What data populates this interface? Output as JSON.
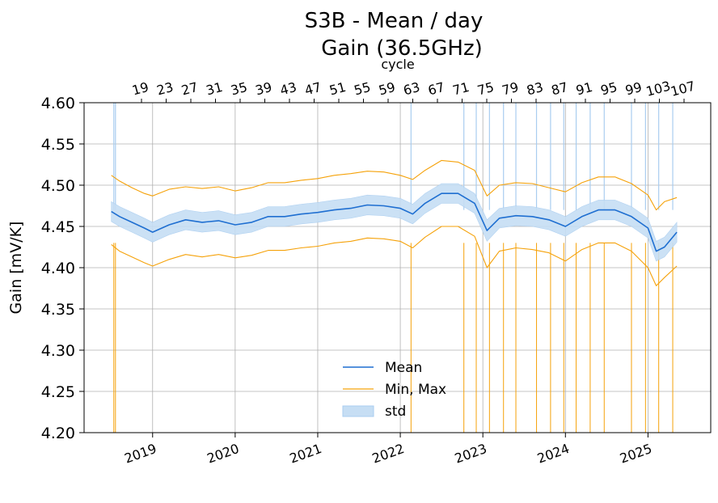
{
  "chart_data": {
    "type": "line",
    "title_line1": "S3B - Mean / day",
    "title_line2": "Gain (36.5GHz)",
    "ylabel": "Gain [mV/K]",
    "top_axis_label": "cycle",
    "ylim": [
      4.2,
      4.6
    ],
    "y_ticks": [
      "4.20",
      "4.25",
      "4.30",
      "4.35",
      "4.40",
      "4.45",
      "4.50",
      "4.55",
      "4.60"
    ],
    "xlim": [
      2018.17,
      2025.76
    ],
    "x_ticks": [
      "2019",
      "2020",
      "2021",
      "2022",
      "2023",
      "2024",
      "2025"
    ],
    "cycle_ticks": [
      "19",
      "23",
      "27",
      "31",
      "35",
      "39",
      "43",
      "47",
      "51",
      "55",
      "59",
      "63",
      "67",
      "71",
      "75",
      "79",
      "83",
      "87",
      "91",
      "95",
      "99",
      "103",
      "107"
    ],
    "legend": {
      "placement": "lower-center",
      "mean_label": "Mean",
      "minmax_label": "Min, Max",
      "std_label": "std"
    },
    "colors": {
      "mean": "#1f6fd1",
      "minmax": "#f5a20a",
      "std": "#a9cdf0",
      "grid": "#b0b0b0"
    },
    "series": [
      {
        "name": "Mean",
        "x": [
          2018.5,
          2018.6,
          2018.75,
          2018.9,
          2019.0,
          2019.2,
          2019.4,
          2019.6,
          2019.8,
          2020.0,
          2020.2,
          2020.4,
          2020.6,
          2020.8,
          2021.0,
          2021.2,
          2021.4,
          2021.6,
          2021.8,
          2022.0,
          2022.15,
          2022.3,
          2022.5,
          2022.7,
          2022.9,
          2023.05,
          2023.2,
          2023.4,
          2023.6,
          2023.8,
          2024.0,
          2024.2,
          2024.4,
          2024.6,
          2024.8,
          2025.0,
          2025.1,
          2025.2,
          2025.35
        ],
        "values": [
          4.468,
          4.462,
          4.455,
          4.448,
          4.443,
          4.452,
          4.458,
          4.455,
          4.457,
          4.452,
          4.455,
          4.462,
          4.462,
          4.465,
          4.467,
          4.47,
          4.472,
          4.476,
          4.475,
          4.472,
          4.465,
          4.478,
          4.49,
          4.49,
          4.478,
          4.445,
          4.46,
          4.463,
          4.462,
          4.458,
          4.45,
          4.462,
          4.47,
          4.47,
          4.462,
          4.448,
          4.42,
          4.425,
          4.443
        ]
      },
      {
        "name": "Max",
        "x": [
          2018.5,
          2018.6,
          2018.75,
          2018.9,
          2019.0,
          2019.2,
          2019.4,
          2019.6,
          2019.8,
          2020.0,
          2020.2,
          2020.4,
          2020.6,
          2020.8,
          2021.0,
          2021.2,
          2021.4,
          2021.6,
          2021.8,
          2022.0,
          2022.15,
          2022.3,
          2022.5,
          2022.7,
          2022.9,
          2023.05,
          2023.2,
          2023.4,
          2023.6,
          2023.8,
          2024.0,
          2024.2,
          2024.4,
          2024.6,
          2024.8,
          2025.0,
          2025.1,
          2025.2,
          2025.35
        ],
        "values": [
          4.512,
          4.505,
          4.497,
          4.49,
          4.487,
          4.495,
          4.498,
          4.496,
          4.498,
          4.493,
          4.497,
          4.503,
          4.503,
          4.506,
          4.508,
          4.512,
          4.514,
          4.517,
          4.516,
          4.512,
          4.507,
          4.518,
          4.53,
          4.528,
          4.518,
          4.487,
          4.5,
          4.503,
          4.502,
          4.497,
          4.492,
          4.503,
          4.51,
          4.51,
          4.502,
          4.488,
          4.47,
          4.48,
          4.485
        ]
      },
      {
        "name": "Min",
        "x": [
          2018.5,
          2018.6,
          2018.75,
          2018.9,
          2019.0,
          2019.2,
          2019.4,
          2019.6,
          2019.8,
          2020.0,
          2020.2,
          2020.4,
          2020.6,
          2020.8,
          2021.0,
          2021.2,
          2021.4,
          2021.6,
          2021.8,
          2022.0,
          2022.15,
          2022.3,
          2022.5,
          2022.7,
          2022.9,
          2023.05,
          2023.2,
          2023.4,
          2023.6,
          2023.8,
          2024.0,
          2024.2,
          2024.4,
          2024.6,
          2024.8,
          2025.0,
          2025.1,
          2025.2,
          2025.35
        ],
        "values": [
          4.428,
          4.42,
          4.413,
          4.406,
          4.402,
          4.41,
          4.416,
          4.413,
          4.416,
          4.412,
          4.415,
          4.421,
          4.421,
          4.424,
          4.426,
          4.43,
          4.432,
          4.436,
          4.435,
          4.432,
          4.424,
          4.437,
          4.45,
          4.45,
          4.438,
          4.4,
          4.42,
          4.424,
          4.422,
          4.418,
          4.408,
          4.422,
          4.43,
          4.43,
          4.42,
          4.4,
          4.378,
          4.388,
          4.402
        ]
      }
    ],
    "std_band": {
      "x": [
        2018.5,
        2018.6,
        2018.75,
        2018.9,
        2019.0,
        2019.2,
        2019.4,
        2019.6,
        2019.8,
        2020.0,
        2020.2,
        2020.4,
        2020.6,
        2020.8,
        2021.0,
        2021.2,
        2021.4,
        2021.6,
        2021.8,
        2022.0,
        2022.15,
        2022.3,
        2022.5,
        2022.7,
        2022.9,
        2023.05,
        2023.2,
        2023.4,
        2023.6,
        2023.8,
        2024.0,
        2024.2,
        2024.4,
        2024.6,
        2024.8,
        2025.0,
        2025.1,
        2025.2,
        2025.35
      ],
      "lower": [
        4.456,
        4.45,
        4.443,
        4.436,
        4.431,
        4.44,
        4.446,
        4.443,
        4.445,
        4.44,
        4.443,
        4.45,
        4.45,
        4.453,
        4.455,
        4.458,
        4.46,
        4.464,
        4.463,
        4.46,
        4.453,
        4.466,
        4.478,
        4.478,
        4.466,
        4.432,
        4.448,
        4.451,
        4.45,
        4.446,
        4.438,
        4.45,
        4.458,
        4.458,
        4.45,
        4.436,
        4.408,
        4.413,
        4.431
      ],
      "upper": [
        4.48,
        4.474,
        4.467,
        4.46,
        4.455,
        4.464,
        4.47,
        4.467,
        4.469,
        4.464,
        4.467,
        4.474,
        4.474,
        4.477,
        4.479,
        4.482,
        4.484,
        4.488,
        4.487,
        4.484,
        4.477,
        4.49,
        4.502,
        4.502,
        4.49,
        4.458,
        4.472,
        4.475,
        4.474,
        4.47,
        4.462,
        4.474,
        4.482,
        4.482,
        4.474,
        4.46,
        4.432,
        4.437,
        4.455
      ]
    },
    "spikes": {
      "x": [
        2018.53,
        2018.55,
        2022.13,
        2022.77,
        2022.92,
        2023.08,
        2023.25,
        2023.4,
        2023.65,
        2023.82,
        2023.98,
        2024.13,
        2024.3,
        2024.47,
        2024.8,
        2024.97,
        2025.13,
        2025.3
      ],
      "min_values": [
        4.2,
        4.2,
        4.2,
        4.2,
        4.2,
        4.2,
        4.2,
        4.2,
        4.2,
        4.2,
        4.2,
        4.2,
        4.2,
        4.2,
        4.2,
        4.2,
        4.2,
        4.2
      ]
    }
  }
}
